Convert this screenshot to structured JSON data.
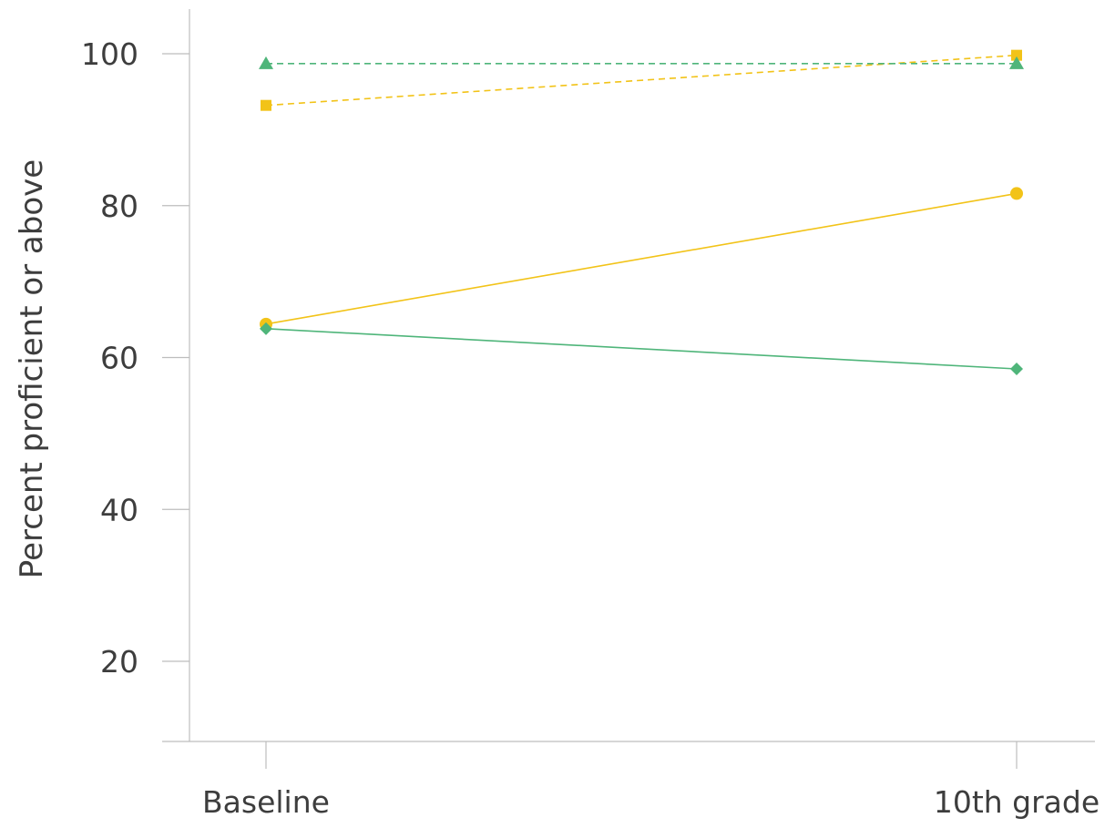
{
  "chart_data": {
    "type": "line",
    "title": "",
    "xlabel": "",
    "ylabel": "Percent proficient or above",
    "categories": [
      "Baseline",
      "10th grade"
    ],
    "yticks": [
      20,
      40,
      60,
      80,
      100
    ],
    "ylim": [
      9,
      106
    ],
    "grid": false,
    "legend": "none",
    "series": [
      {
        "color": "#f2c318",
        "dash": "dashed",
        "marker": "square",
        "values": [
          93.2,
          99.8
        ]
      },
      {
        "color": "#4fb57a",
        "dash": "dashed",
        "marker": "triangle",
        "values": [
          98.7,
          98.7
        ]
      },
      {
        "color": "#f2c318",
        "dash": "solid",
        "marker": "circle",
        "values": [
          64.4,
          81.6
        ]
      },
      {
        "color": "#4fb57a",
        "dash": "solid",
        "marker": "diamond",
        "values": [
          63.8,
          58.5
        ]
      }
    ]
  }
}
